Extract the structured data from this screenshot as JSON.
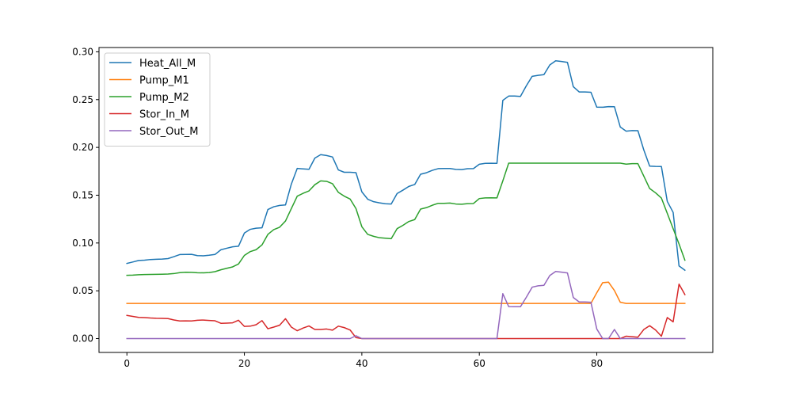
{
  "chart_data": {
    "type": "line",
    "title": "",
    "xlabel": "",
    "ylabel": "",
    "xlim": [
      -4.75,
      99.75
    ],
    "ylim": [
      -0.0145,
      0.3045
    ],
    "x_ticks": [
      0,
      20,
      40,
      60,
      80
    ],
    "x_tick_labels": [
      "0",
      "20",
      "40",
      "60",
      "80"
    ],
    "y_ticks": [
      0.0,
      0.05,
      0.1,
      0.15,
      0.2,
      0.25,
      0.3
    ],
    "y_tick_labels": [
      "0.00",
      "0.05",
      "0.10",
      "0.15",
      "0.20",
      "0.25",
      "0.30"
    ],
    "grid": false,
    "legend": "top-left",
    "x_start": 0,
    "x_step": 1,
    "series": [
      {
        "name": "Heat_All_M",
        "color": "#1f77b4",
        "values": [
          0.0786,
          0.0801,
          0.0817,
          0.082,
          0.0827,
          0.083,
          0.0832,
          0.0837,
          0.0857,
          0.0879,
          0.088,
          0.0881,
          0.0868,
          0.0866,
          0.0872,
          0.088,
          0.0929,
          0.0945,
          0.096,
          0.0966,
          0.1104,
          0.1143,
          0.1155,
          0.1159,
          0.135,
          0.1379,
          0.1393,
          0.1398,
          0.1617,
          0.178,
          0.1775,
          0.1771,
          0.1888,
          0.1924,
          0.1915,
          0.19,
          0.1764,
          0.174,
          0.174,
          0.1736,
          0.1535,
          0.1458,
          0.1432,
          0.142,
          0.1411,
          0.1408,
          0.1517,
          0.1553,
          0.1592,
          0.1612,
          0.1719,
          0.1735,
          0.176,
          0.1778,
          0.1779,
          0.1779,
          0.177,
          0.1768,
          0.1777,
          0.1778,
          0.1824,
          0.1833,
          0.1834,
          0.1833,
          0.2492,
          0.2537,
          0.2537,
          0.2533,
          0.2644,
          0.2744,
          0.2754,
          0.2761,
          0.2863,
          0.2906,
          0.2899,
          0.289,
          0.2635,
          0.258,
          0.258,
          0.2577,
          0.2421,
          0.242,
          0.2427,
          0.2426,
          0.2213,
          0.217,
          0.2176,
          0.2175,
          0.1974,
          0.1804,
          0.1801,
          0.18,
          0.1435,
          0.132,
          0.076,
          0.0715
        ]
      },
      {
        "name": "Pump_M1",
        "color": "#ff7f0e",
        "values": [
          0.0368,
          0.0368,
          0.0368,
          0.0368,
          0.0368,
          0.0368,
          0.0368,
          0.0368,
          0.0368,
          0.0368,
          0.0368,
          0.0368,
          0.0368,
          0.0368,
          0.0368,
          0.0368,
          0.0368,
          0.0368,
          0.0368,
          0.0368,
          0.0368,
          0.0368,
          0.0368,
          0.0368,
          0.0368,
          0.0368,
          0.0368,
          0.0368,
          0.0368,
          0.0368,
          0.0368,
          0.0368,
          0.0368,
          0.0368,
          0.0368,
          0.0368,
          0.0368,
          0.0368,
          0.0368,
          0.0368,
          0.0368,
          0.0368,
          0.0368,
          0.0368,
          0.0368,
          0.0368,
          0.0368,
          0.0368,
          0.0368,
          0.0368,
          0.0368,
          0.0368,
          0.0368,
          0.0368,
          0.0368,
          0.0368,
          0.0368,
          0.0368,
          0.0368,
          0.0368,
          0.0368,
          0.0368,
          0.0368,
          0.0368,
          0.0368,
          0.0368,
          0.0368,
          0.0368,
          0.0368,
          0.0368,
          0.0368,
          0.0368,
          0.0368,
          0.0368,
          0.0368,
          0.0368,
          0.0368,
          0.0368,
          0.0368,
          0.0368,
          0.048,
          0.0585,
          0.059,
          0.0503,
          0.038,
          0.0368,
          0.0368,
          0.0368,
          0.0368,
          0.0368,
          0.0368,
          0.0368,
          0.0368,
          0.0368,
          0.0368,
          0.0368
        ]
      },
      {
        "name": "Pump_M2",
        "color": "#2ca02c",
        "values": [
          0.0662,
          0.0664,
          0.0668,
          0.067,
          0.0671,
          0.0672,
          0.0673,
          0.0675,
          0.068,
          0.069,
          0.0694,
          0.0693,
          0.0689,
          0.0688,
          0.0691,
          0.07,
          0.072,
          0.0735,
          0.075,
          0.078,
          0.087,
          0.091,
          0.093,
          0.098,
          0.109,
          0.114,
          0.1165,
          0.123,
          0.136,
          0.149,
          0.152,
          0.1545,
          0.161,
          0.165,
          0.1645,
          0.162,
          0.153,
          0.149,
          0.146,
          0.136,
          0.117,
          0.109,
          0.107,
          0.1055,
          0.105,
          0.1045,
          0.115,
          0.1185,
          0.1225,
          0.1245,
          0.1355,
          0.137,
          0.1395,
          0.1415,
          0.1415,
          0.1418,
          0.1408,
          0.1405,
          0.1412,
          0.1413,
          0.1465,
          0.1472,
          0.1473,
          0.1472,
          0.165,
          0.1835,
          0.1835,
          0.1835,
          0.1835,
          0.1835,
          0.1835,
          0.1835,
          0.1835,
          0.1835,
          0.1835,
          0.1835,
          0.1835,
          0.1835,
          0.1835,
          0.1835,
          0.1835,
          0.1835,
          0.1835,
          0.1835,
          0.1835,
          0.1825,
          0.183,
          0.183,
          0.17,
          0.157,
          0.1525,
          0.147,
          0.131,
          0.115,
          0.099,
          0.082
        ]
      },
      {
        "name": "Stor_In_M",
        "color": "#d62728",
        "values": [
          0.0242,
          0.0232,
          0.0222,
          0.022,
          0.0215,
          0.0212,
          0.0211,
          0.0209,
          0.0195,
          0.0184,
          0.0185,
          0.0184,
          0.0192,
          0.0194,
          0.019,
          0.0186,
          0.016,
          0.0162,
          0.0165,
          0.0192,
          0.0127,
          0.013,
          0.0145,
          0.0188,
          0.0103,
          0.012,
          0.014,
          0.0208,
          0.012,
          0.0082,
          0.011,
          0.0132,
          0.0095,
          0.0095,
          0.01,
          0.0088,
          0.013,
          0.0115,
          0.009,
          0.001,
          0.0,
          0.0,
          0.0,
          0.0,
          0.0,
          0.0,
          0.0,
          0.0,
          0.0,
          0.0,
          0.0,
          0.0,
          0.0,
          0.0,
          0.0,
          0.0,
          0.0,
          0.0,
          0.0,
          0.0,
          0.0,
          0.0,
          0.0,
          0.0,
          0.0,
          0.0,
          0.0,
          0.0,
          0.0,
          0.0,
          0.0,
          0.0,
          0.0,
          0.0,
          0.0,
          0.0,
          0.0,
          0.0,
          0.0,
          0.0,
          0.0,
          0.0,
          0.0,
          0.0,
          0.0,
          0.0025,
          0.002,
          0.0015,
          0.0095,
          0.0135,
          0.009,
          0.0025,
          0.022,
          0.0175,
          0.057,
          0.046
        ]
      },
      {
        "name": "Stor_Out_M",
        "color": "#9467bd",
        "values": [
          0.0,
          0.0,
          0.0,
          0.0,
          0.0,
          0.0,
          0.0,
          0.0,
          0.0,
          0.0,
          0.0,
          0.0,
          0.0,
          0.0,
          0.0,
          0.0,
          0.0,
          0.0,
          0.0,
          0.0,
          0.0,
          0.0,
          0.0,
          0.0,
          0.0,
          0.0,
          0.0,
          0.0,
          0.0,
          0.0,
          0.0,
          0.0,
          0.0,
          0.0,
          0.0,
          0.0,
          0.0,
          0.0,
          0.0,
          0.003,
          0.0,
          0.0,
          0.0,
          0.0,
          0.0,
          0.0,
          0.0,
          0.0,
          0.0,
          0.0,
          0.0,
          0.0,
          0.0,
          0.0,
          0.0,
          0.0,
          0.0,
          0.0,
          0.0,
          0.0,
          0.0,
          0.0,
          0.0,
          0.0,
          0.047,
          0.0335,
          0.0333,
          0.0333,
          0.0432,
          0.0538,
          0.0552,
          0.0557,
          0.066,
          0.0702,
          0.0695,
          0.0687,
          0.043,
          0.0383,
          0.0383,
          0.038,
          0.01,
          0.0,
          0.0,
          0.0095,
          0.0,
          0.0,
          0.0,
          0.0,
          0.0,
          0.0,
          0.0,
          0.0,
          0.0,
          0.0,
          0.0,
          0.0
        ]
      }
    ]
  }
}
